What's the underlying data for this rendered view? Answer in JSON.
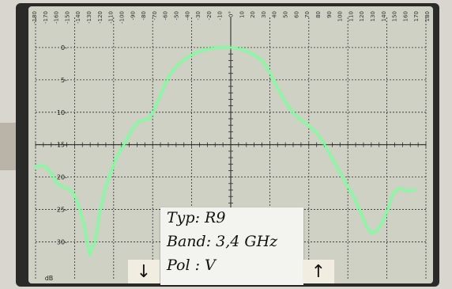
{
  "chart_data": {
    "type": "line",
    "title": "",
    "xlabel": "",
    "ylabel": "dB",
    "x_ticks": [
      "-180",
      "-170",
      "-160",
      "-150",
      "-140",
      "-130",
      "-120",
      "-110",
      "-100",
      "-90",
      "-80",
      "-70",
      "-60",
      "-50",
      "-40",
      "-30",
      "-20",
      "-10",
      "0°",
      "10",
      "20",
      "30",
      "40",
      "50",
      "60",
      "70",
      "80",
      "90",
      "100",
      "110",
      "120",
      "130",
      "140",
      "150",
      "160",
      "170",
      "180"
    ],
    "y_ticks": [
      "0",
      "5",
      "10",
      "15",
      "20",
      "25",
      "30"
    ],
    "xlim": [
      -180,
      180
    ],
    "ylim": [
      -33,
      0
    ],
    "grid": true,
    "series": [
      {
        "x": [
          -180,
          -175,
          -170,
          -165,
          -160,
          -155,
          -150,
          -145,
          -140,
          -135,
          -130,
          -125,
          -120,
          -115,
          -110,
          -105,
          -100,
          -95,
          -90,
          -85,
          -80,
          -75,
          -70,
          -65,
          -60,
          -55,
          -50,
          -45,
          -40,
          -35,
          -30,
          -25,
          -20,
          -15,
          -10,
          -5,
          0,
          5,
          10,
          15,
          20,
          25,
          30,
          35,
          40,
          45,
          50,
          55,
          60,
          65,
          70,
          75,
          80,
          85,
          90,
          95,
          100,
          105,
          110,
          115,
          120,
          125,
          130,
          135,
          140,
          145,
          150,
          155,
          160,
          165,
          170
        ],
        "values": [
          -18.5,
          -18.2,
          -18.5,
          -19.5,
          -21,
          -21.5,
          -21.8,
          -22.5,
          -24.5,
          -27.5,
          -32,
          -30,
          -25,
          -21.5,
          -19,
          -17,
          -15.5,
          -14,
          -12.5,
          -11.5,
          -11.2,
          -11,
          -9.5,
          -7.5,
          -5.5,
          -4,
          -3,
          -2.2,
          -1.6,
          -1.1,
          -0.7,
          -0.4,
          -0.2,
          -0.1,
          0,
          0,
          0,
          -0.1,
          -0.3,
          -0.6,
          -1.0,
          -1.5,
          -2.2,
          -3.5,
          -5.2,
          -6.8,
          -8.3,
          -9.5,
          -10.5,
          -11.2,
          -11.8,
          -12.5,
          -13.3,
          -14.5,
          -16,
          -17.5,
          -19,
          -20.5,
          -22,
          -23.5,
          -25.5,
          -27.5,
          -28.7,
          -28.3,
          -27,
          -25,
          -22.5,
          -21.8,
          -22,
          -22.2,
          -22
        ]
      }
    ]
  },
  "note": {
    "line1": "Typ:  R9",
    "line2": "Band: 3,4 GHz",
    "line3": "Pol :  V"
  },
  "arrows": {
    "left": "↓",
    "right": "↑"
  },
  "colors": {
    "screen": "#cfd1c5",
    "trace": "#7cff9c",
    "grid": "#2d2d2d",
    "note": "#f3f3ef"
  }
}
